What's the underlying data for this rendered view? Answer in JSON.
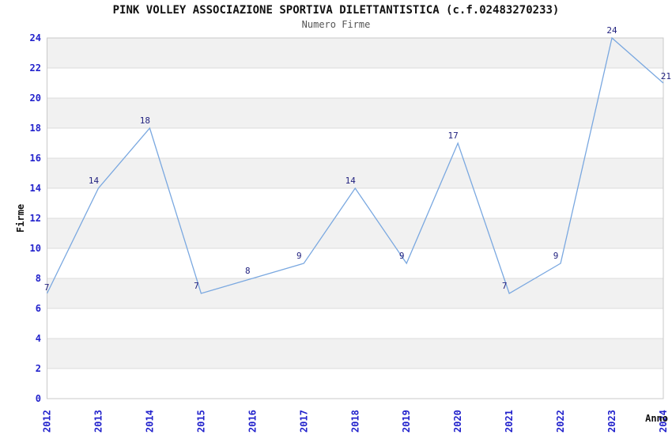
{
  "chart_data": {
    "type": "line",
    "title": "PINK VOLLEY ASSOCIAZIONE SPORTIVA DILETTANTISTICA (c.f.02483270233)",
    "subtitle": "Numero Firme",
    "xlabel": "Anno",
    "ylabel": "Firme",
    "categories": [
      "2012",
      "2013",
      "2014",
      "2015",
      "2016",
      "2017",
      "2018",
      "2019",
      "2020",
      "2021",
      "2022",
      "2023",
      "2024"
    ],
    "values": [
      7,
      14,
      18,
      7,
      8,
      9,
      14,
      9,
      17,
      7,
      9,
      24,
      21
    ],
    "ylim": [
      0,
      24
    ],
    "ytick_step": 2,
    "yticks": [
      0,
      2,
      4,
      6,
      8,
      10,
      12,
      14,
      16,
      18,
      20,
      22,
      24
    ],
    "grid": true,
    "legend_position": "none",
    "colors": {
      "line": "#7aa8e0",
      "tick_label": "#2222cc",
      "point_label": "#232380",
      "band": "#f1f1f1",
      "gridline": "#dcdcdc",
      "plot_border": "#c9c9c9",
      "title": "#111111",
      "subtitle": "#555555",
      "axis_label": "#111111",
      "background": "#ffffff"
    }
  }
}
